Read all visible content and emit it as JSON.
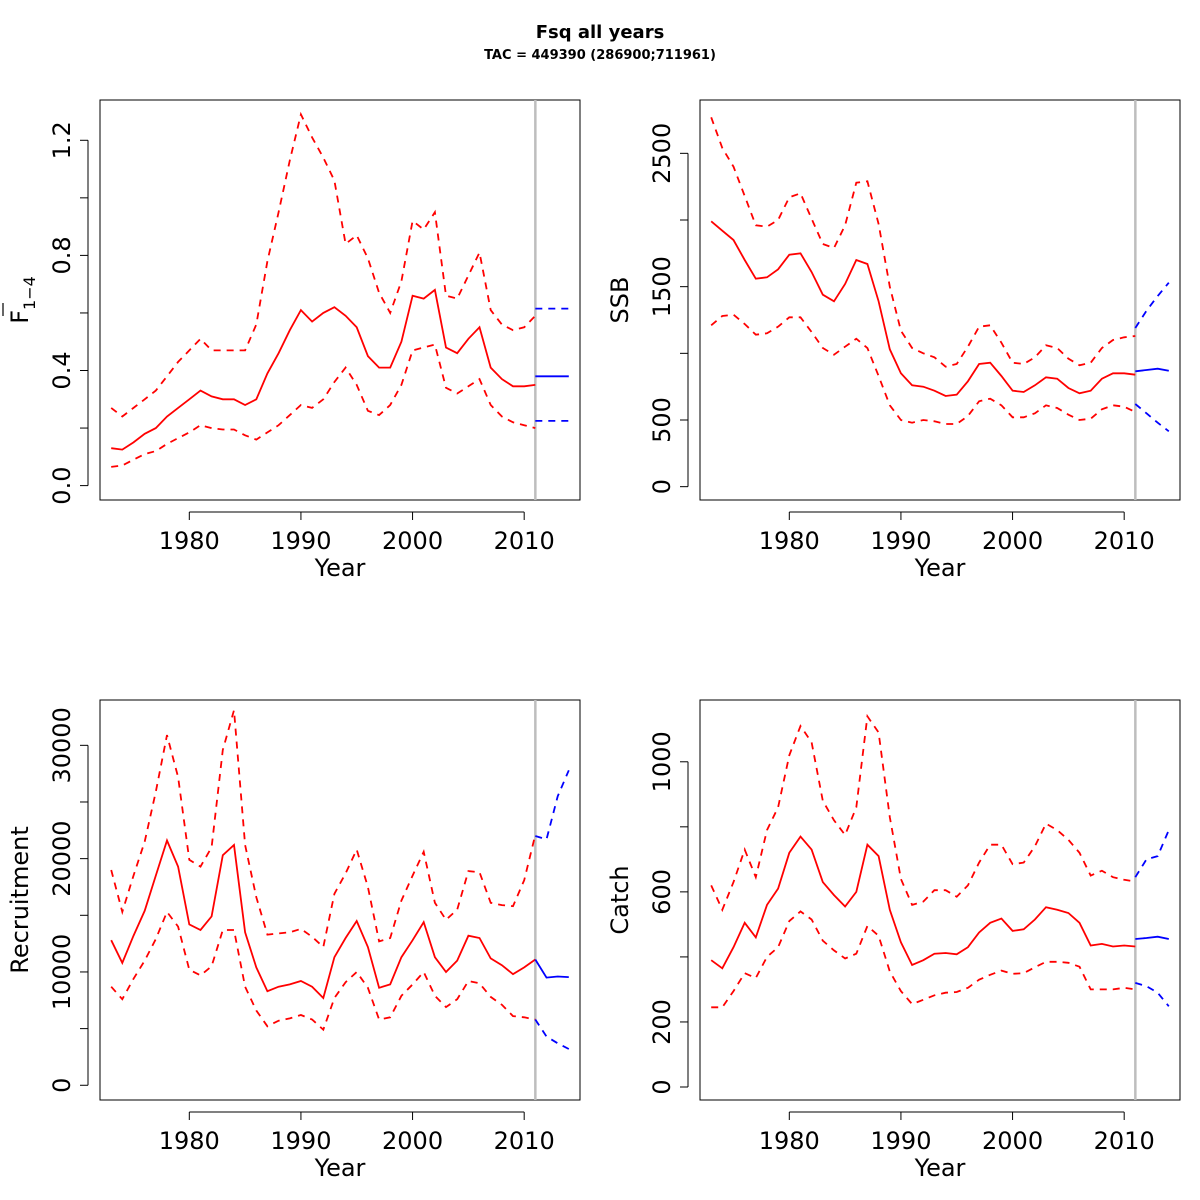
{
  "figure": {
    "title": "Fsq all years",
    "subtitle": "TAC = 449390 (286900;711961)"
  },
  "colors": {
    "estimate": "#ff0000",
    "forecast": "#0000ff",
    "vline": "#bebebe",
    "axis": "#000000"
  },
  "chart_data": [
    {
      "type": "line",
      "title": "",
      "xlabel": "Year",
      "ylabel": "F̅1−4",
      "ylabel_main": "F",
      "ylabel_sub": "1−4",
      "xlim": [
        1972,
        2015
      ],
      "ylim": [
        -0.05,
        1.34
      ],
      "xticks": [
        1980,
        1990,
        2000,
        2010
      ],
      "yticks": [
        0.0,
        0.2,
        0.4,
        0.6,
        0.8,
        1.0,
        1.2
      ],
      "yticklabels": [
        "0.0",
        "",
        "0.4",
        "",
        "0.8",
        "",
        "1.2"
      ],
      "xticklabels": [
        "1980",
        "1990",
        "2000",
        "2010"
      ],
      "vline": 2011,
      "x": [
        1973,
        1974,
        1975,
        1976,
        1977,
        1978,
        1979,
        1980,
        1981,
        1982,
        1983,
        1984,
        1985,
        1986,
        1987,
        1988,
        1989,
        1990,
        1991,
        1992,
        1993,
        1994,
        1995,
        1996,
        1997,
        1998,
        1999,
        2000,
        2001,
        2002,
        2003,
        2004,
        2005,
        2006,
        2007,
        2008,
        2009,
        2010,
        2011
      ],
      "series": [
        {
          "role": "estimate",
          "values": [
            0.13,
            0.125,
            0.15,
            0.18,
            0.2,
            0.24,
            0.27,
            0.3,
            0.33,
            0.31,
            0.3,
            0.3,
            0.28,
            0.3,
            0.39,
            0.46,
            0.54,
            0.61,
            0.57,
            0.6,
            0.62,
            0.59,
            0.55,
            0.45,
            0.41,
            0.41,
            0.5,
            0.66,
            0.65,
            0.68,
            0.48,
            0.46,
            0.51,
            0.55,
            0.41,
            0.37,
            0.345,
            0.345,
            0.35
          ]
        },
        {
          "role": "upper",
          "values": [
            0.27,
            0.24,
            0.27,
            0.3,
            0.33,
            0.38,
            0.43,
            0.47,
            0.51,
            0.47,
            0.47,
            0.47,
            0.47,
            0.56,
            0.78,
            0.95,
            1.13,
            1.29,
            1.21,
            1.14,
            1.06,
            0.84,
            0.87,
            0.79,
            0.67,
            0.6,
            0.71,
            0.92,
            0.89,
            0.95,
            0.66,
            0.65,
            0.73,
            0.81,
            0.61,
            0.56,
            0.54,
            0.55,
            0.59
          ]
        },
        {
          "role": "lower",
          "values": [
            0.065,
            0.07,
            0.09,
            0.11,
            0.12,
            0.145,
            0.165,
            0.185,
            0.21,
            0.2,
            0.195,
            0.195,
            0.175,
            0.16,
            0.185,
            0.21,
            0.245,
            0.28,
            0.27,
            0.3,
            0.36,
            0.41,
            0.35,
            0.26,
            0.245,
            0.28,
            0.35,
            0.47,
            0.48,
            0.49,
            0.34,
            0.32,
            0.345,
            0.37,
            0.28,
            0.24,
            0.22,
            0.21,
            0.2
          ]
        }
      ],
      "forecast": {
        "x": [
          2011,
          2012,
          2013,
          2014
        ],
        "series": [
          {
            "role": "estimate",
            "values": [
              0.38,
              0.38,
              0.38,
              0.38
            ]
          },
          {
            "role": "upper",
            "values": [
              0.615,
              0.615,
              0.615,
              0.615
            ]
          },
          {
            "role": "lower",
            "values": [
              0.225,
              0.225,
              0.225,
              0.225
            ]
          }
        ]
      }
    },
    {
      "type": "line",
      "title": "",
      "xlabel": "Year",
      "ylabel": "SSB",
      "xlim": [
        1972,
        2015
      ],
      "ylim": [
        -100,
        2900
      ],
      "xticks": [
        1980,
        1990,
        2000,
        2010
      ],
      "xticklabels": [
        "1980",
        "1990",
        "2000",
        "2010"
      ],
      "yticks": [
        0,
        500,
        1000,
        1500,
        2000,
        2500
      ],
      "yticklabels": [
        "0",
        "500",
        "",
        "1500",
        "",
        "2500"
      ],
      "vline": 2011,
      "x": [
        1973,
        1974,
        1975,
        1976,
        1977,
        1978,
        1979,
        1980,
        1981,
        1982,
        1983,
        1984,
        1985,
        1986,
        1987,
        1988,
        1989,
        1990,
        1991,
        1992,
        1993,
        1994,
        1995,
        1996,
        1997,
        1998,
        1999,
        2000,
        2001,
        2002,
        2003,
        2004,
        2005,
        2006,
        2007,
        2008,
        2009,
        2010,
        2011
      ],
      "series": [
        {
          "role": "estimate",
          "values": [
            1990,
            1920,
            1850,
            1700,
            1560,
            1570,
            1630,
            1740,
            1750,
            1610,
            1440,
            1390,
            1520,
            1700,
            1670,
            1390,
            1030,
            850,
            760,
            750,
            720,
            680,
            690,
            790,
            920,
            930,
            830,
            720,
            710,
            760,
            820,
            810,
            740,
            700,
            720,
            810,
            850,
            850,
            840
          ]
        },
        {
          "role": "upper",
          "values": [
            2770,
            2540,
            2400,
            2180,
            1960,
            1950,
            2000,
            2170,
            2200,
            2010,
            1820,
            1790,
            1960,
            2280,
            2290,
            1970,
            1500,
            1170,
            1040,
            1000,
            970,
            900,
            920,
            1050,
            1200,
            1210,
            1080,
            930,
            920,
            970,
            1060,
            1040,
            960,
            910,
            930,
            1040,
            1100,
            1120,
            1130
          ]
        },
        {
          "role": "lower",
          "values": [
            1210,
            1280,
            1290,
            1220,
            1140,
            1150,
            1200,
            1270,
            1270,
            1160,
            1040,
            990,
            1050,
            1110,
            1040,
            830,
            610,
            500,
            480,
            500,
            490,
            470,
            470,
            530,
            640,
            660,
            610,
            520,
            520,
            550,
            610,
            590,
            540,
            500,
            510,
            580,
            610,
            600,
            560
          ]
        }
      ],
      "forecast": {
        "x": [
          2011,
          2012,
          2013,
          2014
        ],
        "series": [
          {
            "role": "estimate",
            "values": [
              865,
              875,
              885,
              870
            ]
          },
          {
            "role": "upper",
            "values": [
              1190,
              1320,
              1430,
              1530
            ]
          },
          {
            "role": "lower",
            "values": [
              620,
              550,
              480,
              415
            ]
          }
        ]
      }
    },
    {
      "type": "line",
      "title": "",
      "xlabel": "Year",
      "ylabel": "Recruitment",
      "xlim": [
        1972,
        2015
      ],
      "ylim": [
        -1300,
        34000
      ],
      "xticks": [
        1980,
        1990,
        2000,
        2010
      ],
      "xticklabels": [
        "1980",
        "1990",
        "2000",
        "2010"
      ],
      "yticks": [
        0,
        5000,
        10000,
        15000,
        20000,
        25000,
        30000
      ],
      "yticklabels": [
        "0",
        "",
        "10000",
        "",
        "20000",
        "",
        "30000"
      ],
      "vline": 2011,
      "x": [
        1973,
        1974,
        1975,
        1976,
        1977,
        1978,
        1979,
        1980,
        1981,
        1982,
        1983,
        1984,
        1985,
        1986,
        1987,
        1988,
        1989,
        1990,
        1991,
        1992,
        1993,
        1994,
        1995,
        1996,
        1997,
        1998,
        1999,
        2000,
        2001,
        2002,
        2003,
        2004,
        2005,
        2006,
        2007,
        2008,
        2009,
        2010,
        2011
      ],
      "series": [
        {
          "role": "estimate",
          "values": [
            12800,
            10800,
            13200,
            15400,
            18500,
            21600,
            19300,
            14200,
            13700,
            14900,
            20300,
            21200,
            13500,
            10400,
            8300,
            8700,
            8900,
            9200,
            8700,
            7700,
            11300,
            13000,
            14500,
            12200,
            8600,
            8900,
            11300,
            12800,
            14400,
            11300,
            10000,
            11000,
            13200,
            13000,
            11200,
            10600,
            9800,
            10400,
            11100
          ]
        },
        {
          "role": "upper",
          "values": [
            19000,
            15300,
            18500,
            21500,
            25900,
            30900,
            27200,
            19900,
            19300,
            21000,
            29600,
            33100,
            21200,
            16600,
            13300,
            13400,
            13500,
            13800,
            13100,
            12200,
            16900,
            18700,
            20800,
            17500,
            12700,
            13000,
            16300,
            18500,
            20600,
            16100,
            14600,
            15500,
            18900,
            18800,
            16100,
            15900,
            15800,
            18100,
            22100
          ]
        },
        {
          "role": "lower",
          "values": [
            8700,
            7600,
            9400,
            11000,
            12900,
            15300,
            14000,
            10200,
            9700,
            10500,
            13700,
            13700,
            8700,
            6600,
            5200,
            5700,
            5900,
            6200,
            5800,
            4900,
            7700,
            9100,
            10000,
            8600,
            5800,
            6000,
            7900,
            8900,
            10000,
            7900,
            6900,
            7600,
            9200,
            9000,
            7800,
            7100,
            6100,
            6000,
            5800
          ]
        }
      ],
      "forecast": {
        "x": [
          2011,
          2012,
          2013,
          2014
        ],
        "series": [
          {
            "role": "estimate",
            "values": [
              11100,
              9500,
              9600,
              9550
            ]
          },
          {
            "role": "upper",
            "values": [
              22000,
              21700,
              25500,
              27800
            ]
          },
          {
            "role": "lower",
            "values": [
              5800,
              4300,
              3700,
              3200
            ]
          }
        ]
      }
    },
    {
      "type": "line",
      "title": "",
      "xlabel": "Year",
      "ylabel": "Catch",
      "xlim": [
        1972,
        2015
      ],
      "ylim": [
        -40,
        1190
      ],
      "xticks": [
        1980,
        1990,
        2000,
        2010
      ],
      "xticklabels": [
        "1980",
        "1990",
        "2000",
        "2010"
      ],
      "yticks": [
        0,
        200,
        400,
        600,
        800,
        1000
      ],
      "yticklabels": [
        "0",
        "200",
        "",
        "600",
        "",
        "1000"
      ],
      "vline": 2011,
      "x": [
        1973,
        1974,
        1975,
        1976,
        1977,
        1978,
        1979,
        1980,
        1981,
        1982,
        1983,
        1984,
        1985,
        1986,
        1987,
        1988,
        1989,
        1990,
        1991,
        1992,
        1993,
        1994,
        1995,
        1996,
        1997,
        1998,
        1999,
        2000,
        2001,
        2002,
        2003,
        2004,
        2005,
        2006,
        2007,
        2008,
        2009,
        2010,
        2011
      ],
      "series": [
        {
          "role": "estimate",
          "values": [
            390,
            365,
            430,
            505,
            460,
            560,
            610,
            720,
            770,
            730,
            630,
            590,
            555,
            600,
            745,
            710,
            545,
            445,
            375,
            390,
            410,
            412,
            408,
            430,
            475,
            505,
            518,
            480,
            485,
            515,
            553,
            545,
            535,
            505,
            435,
            440,
            432,
            435,
            432
          ]
        },
        {
          "role": "upper",
          "values": [
            620,
            545,
            630,
            730,
            645,
            790,
            860,
            1020,
            1110,
            1060,
            880,
            820,
            775,
            860,
            1140,
            1090,
            830,
            640,
            560,
            570,
            605,
            605,
            585,
            620,
            690,
            745,
            745,
            685,
            690,
            740,
            810,
            790,
            760,
            720,
            650,
            665,
            645,
            637,
            632
          ]
        },
        {
          "role": "lower",
          "values": [
            245,
            245,
            295,
            350,
            335,
            400,
            430,
            510,
            540,
            515,
            450,
            420,
            395,
            410,
            495,
            465,
            355,
            295,
            255,
            268,
            282,
            290,
            292,
            305,
            330,
            345,
            358,
            348,
            350,
            368,
            385,
            385,
            382,
            370,
            300,
            300,
            300,
            305,
            300
          ]
        }
      ],
      "forecast": {
        "x": [
          2011,
          2012,
          2013,
          2014
        ],
        "series": [
          {
            "role": "estimate",
            "values": [
              455,
              458,
              462,
              455
            ]
          },
          {
            "role": "upper",
            "values": [
              645,
              700,
              710,
              790
            ]
          },
          {
            "role": "lower",
            "values": [
              320,
              310,
              290,
              248
            ]
          }
        ]
      }
    }
  ]
}
